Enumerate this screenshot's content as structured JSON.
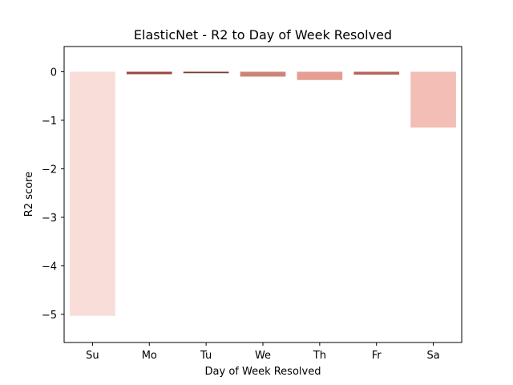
{
  "chart_data": {
    "type": "bar",
    "title": "ElasticNet - R2 to Day of Week Resolved",
    "xlabel": "Day of Week Resolved",
    "ylabel": "R2 score",
    "categories": [
      "Su",
      "Mo",
      "Tu",
      "We",
      "Th",
      "Fr",
      "Sa"
    ],
    "values": [
      -5.03,
      -0.05,
      -0.03,
      -0.1,
      -0.17,
      -0.06,
      -1.15
    ],
    "bar_colors": [
      "#f9ddd8",
      "#99473d",
      "#7b3a30",
      "#cc8478",
      "#e59e93",
      "#b5665b",
      "#f2beb5"
    ],
    "ylim": [
      -5.58,
      0.52
    ],
    "yticks": [
      0,
      -1,
      -2,
      -3,
      -4,
      -5
    ],
    "ytick_labels": [
      "0",
      "−1",
      "−2",
      "−3",
      "−4",
      "−5"
    ],
    "grid": false,
    "legend": "none"
  }
}
